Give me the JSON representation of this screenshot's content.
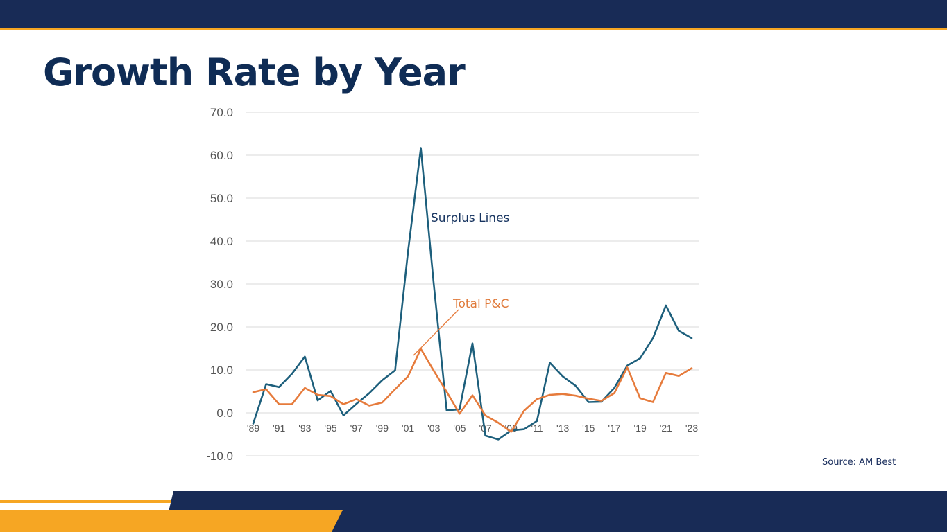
{
  "slide": {
    "title": "Growth Rate by Year",
    "source": "Source: AM Best"
  },
  "colors": {
    "navy": "#182b56",
    "accent": "#f6a623",
    "title": "#0f2c55",
    "surplus_lines": "#1d5f7c",
    "total_pc": "#e67b3c",
    "grid": "#d9d9d9"
  },
  "chart_data": {
    "type": "line",
    "title": "",
    "xlabel": "",
    "ylabel": "",
    "ylim": [
      -10,
      70
    ],
    "yticks": [
      "70.0",
      "60.0",
      "50.0",
      "40.0",
      "30.0",
      "20.0",
      "10.0",
      "0.0",
      "-10.0"
    ],
    "ytick_values": [
      70,
      60,
      50,
      40,
      30,
      20,
      10,
      0,
      -10
    ],
    "x": [
      1989,
      1990,
      1991,
      1992,
      1993,
      1994,
      1995,
      1996,
      1997,
      1998,
      1999,
      2000,
      2001,
      2002,
      2003,
      2004,
      2005,
      2006,
      2007,
      2008,
      2009,
      2010,
      2011,
      2012,
      2013,
      2014,
      2015,
      2016,
      2017,
      2018,
      2019,
      2020,
      2021,
      2022,
      2023
    ],
    "xtick_labels": [
      {
        "year": 1989,
        "label": "'89"
      },
      {
        "year": 1991,
        "label": "'91"
      },
      {
        "year": 1993,
        "label": "'93"
      },
      {
        "year": 1995,
        "label": "'95"
      },
      {
        "year": 1997,
        "label": "'97"
      },
      {
        "year": 1999,
        "label": "'99"
      },
      {
        "year": 2001,
        "label": "'01"
      },
      {
        "year": 2003,
        "label": "'03"
      },
      {
        "year": 2005,
        "label": "'05"
      },
      {
        "year": 2007,
        "label": "'07"
      },
      {
        "year": 2009,
        "label": "'09"
      },
      {
        "year": 2011,
        "label": "'11"
      },
      {
        "year": 2013,
        "label": "'13"
      },
      {
        "year": 2015,
        "label": "'15"
      },
      {
        "year": 2017,
        "label": "'17"
      },
      {
        "year": 2019,
        "label": "'19"
      },
      {
        "year": 2021,
        "label": "'21"
      },
      {
        "year": 2023,
        "label": "'23"
      }
    ],
    "grid": true,
    "legend": "inline labels",
    "series": [
      {
        "name": "Surplus Lines",
        "color": "#1d5f7c",
        "values": [
          -2.5,
          6.7,
          6.0,
          9.1,
          13.1,
          2.9,
          5.1,
          -0.6,
          2.1,
          4.6,
          7.6,
          9.9,
          37.5,
          61.7,
          30.0,
          0.6,
          0.8,
          16.2,
          -5.3,
          -6.2,
          -4.1,
          -3.8,
          -1.9,
          11.7,
          8.5,
          6.3,
          2.5,
          2.6,
          5.8,
          11.0,
          12.7,
          17.4,
          25.0,
          19.1,
          17.4
        ]
      },
      {
        "name": "Total P&C",
        "color": "#e67b3c",
        "values": [
          4.8,
          5.5,
          2.0,
          2.0,
          5.8,
          4.2,
          3.9,
          2.0,
          3.2,
          1.7,
          2.4,
          5.5,
          8.5,
          14.9,
          9.8,
          4.9,
          -0.2,
          4.1,
          -0.6,
          -2.3,
          -4.4,
          0.5,
          3.2,
          4.2,
          4.4,
          4.0,
          3.3,
          2.8,
          4.6,
          10.6,
          3.4,
          2.5,
          9.3,
          8.6,
          10.4
        ]
      }
    ],
    "annotations": {
      "surplus_label": "Surplus Lines",
      "pc_label": "Total P&C"
    }
  }
}
